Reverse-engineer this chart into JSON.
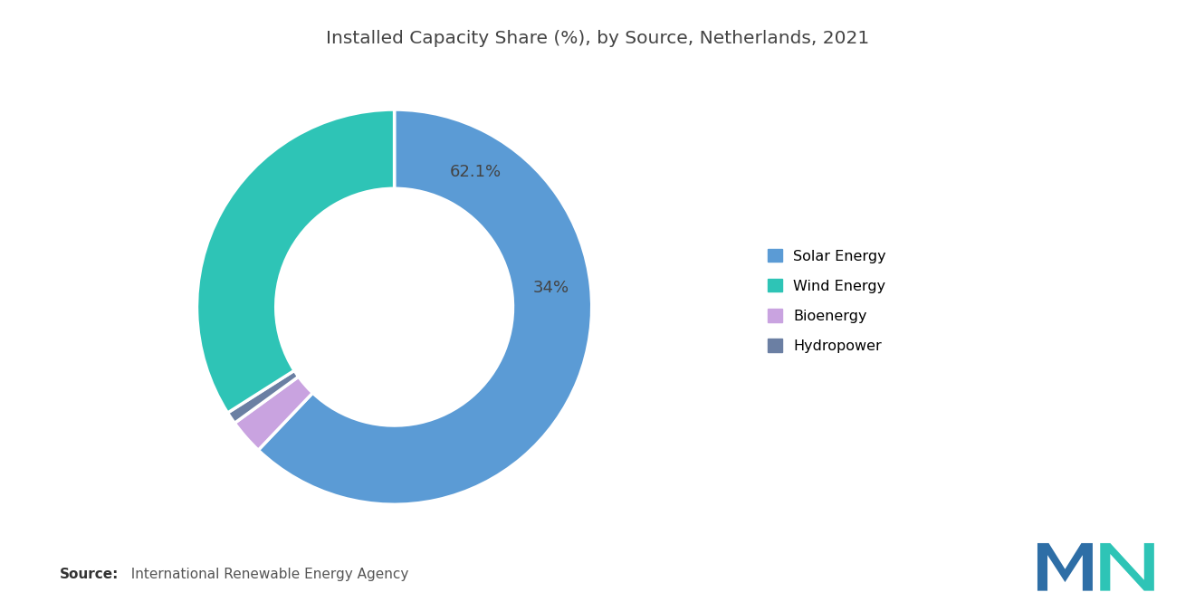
{
  "title": "Installed Capacity Share (%), by Source, Netherlands, 2021",
  "title_fontsize": 14.5,
  "background_color": "#ffffff",
  "slices": [
    62.1,
    2.9,
    1.0,
    34.0
  ],
  "labels": [
    "Solar Energy",
    "Bioenergy",
    "Hydropower",
    "Wind Energy"
  ],
  "colors": [
    "#5B9BD5",
    "#C9A3E0",
    "#6B7FA3",
    "#2EC4B6"
  ],
  "label_display": [
    "62.1%",
    "",
    "",
    "34%"
  ],
  "label_positions": [
    [
      0.35,
      0.62
    ],
    [
      null,
      null
    ],
    [
      null,
      null
    ],
    [
      0.1,
      -0.58
    ]
  ],
  "source_bold": "Source:",
  "source_rest": "  International Renewable Energy Agency",
  "legend_labels": [
    "Solar Energy",
    "Wind Energy",
    "Bioenergy",
    "Hydropower"
  ],
  "legend_colors": [
    "#5B9BD5",
    "#2EC4B6",
    "#C9A3E0",
    "#6B7FA3"
  ],
  "legend_fontsize": 11.5,
  "source_fontsize": 11,
  "donut_width": 0.4,
  "startangle": 90
}
